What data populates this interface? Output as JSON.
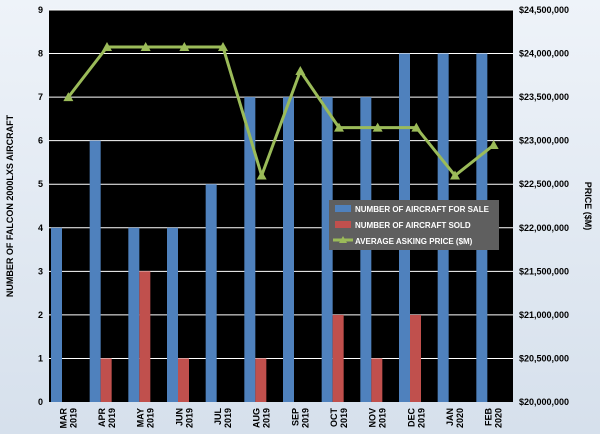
{
  "chart_data": {
    "type": "bar",
    "categories": [
      [
        "MAR",
        "2019"
      ],
      [
        "APR",
        "2019"
      ],
      [
        "MAY",
        "2019"
      ],
      [
        "JUN",
        "2019"
      ],
      [
        "JUL",
        "2019"
      ],
      [
        "AUG",
        "2019"
      ],
      [
        "SEP",
        "2019"
      ],
      [
        "OCT",
        "2019"
      ],
      [
        "NOV",
        "2019"
      ],
      [
        "DEC",
        "2019"
      ],
      [
        "JAN",
        "2020"
      ],
      [
        "FEB",
        "2020"
      ]
    ],
    "series": [
      {
        "name": "NUMBER OF AIRCRAFT FOR SALE",
        "type": "bar",
        "axis": "left",
        "values": [
          4,
          6,
          4,
          4,
          5,
          7,
          7,
          7,
          7,
          8,
          8,
          8
        ]
      },
      {
        "name": "NUMBER OF AIRCRAFT SOLD",
        "type": "bar",
        "axis": "left",
        "values": [
          0,
          1,
          3,
          1,
          0,
          1,
          0,
          2,
          1,
          2,
          0,
          0
        ]
      },
      {
        "name": "AVERAGE ASKING PRICE ($M)",
        "type": "line",
        "axis": "right",
        "values": [
          23500000,
          24075000,
          24075000,
          24075000,
          24075000,
          22600000,
          23800000,
          23150000,
          23150000,
          23150000,
          22600000,
          22950000
        ]
      }
    ],
    "ylabel": "NUMBER OF FALCON 2000LXS AIRCRAFT",
    "y2label": "PRICE ($M)",
    "ylim": [
      0,
      9
    ],
    "y_ticks": [
      "0",
      "1",
      "2",
      "3",
      "4",
      "5",
      "6",
      "7",
      "8",
      "9"
    ],
    "y2lim": [
      20000000,
      24500000
    ],
    "y2_ticks": [
      "$20,000,000",
      "$20,500,000",
      "$21,000,000",
      "$21,500,000",
      "$22,000,000",
      "$22,500,000",
      "$23,000,000",
      "$23,500,000",
      "$24,000,000",
      "$24,500,000"
    ],
    "legend_position": "center-right",
    "grid": true,
    "colors": {
      "plot_background": "#000000",
      "gridline": "#ffffff",
      "for_sale": "#4f81bd",
      "sold": "#c0504d",
      "price": "#9bbb59"
    }
  }
}
